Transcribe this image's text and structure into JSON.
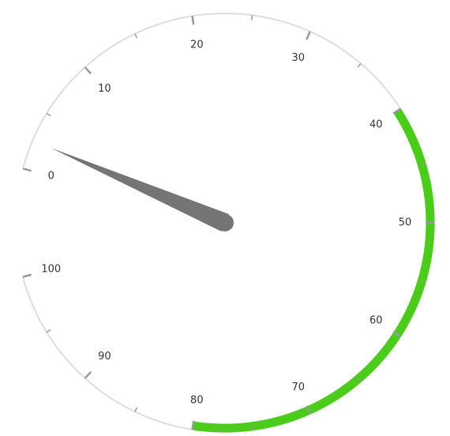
{
  "chart_data": {
    "type": "gauge",
    "min": 0,
    "max": 100,
    "start_angle_deg": 195,
    "sweep_deg": 330,
    "direction": "clockwise",
    "major_interval": 10,
    "minor_interval": 5,
    "tick_labels": [
      "0",
      "10",
      "20",
      "30",
      "40",
      "50",
      "60",
      "70",
      "80",
      "90",
      "100"
    ],
    "range": {
      "start": 40,
      "end": 80,
      "color": "#4ccc1a"
    },
    "pointer": {
      "value": 2.5,
      "type": "needle",
      "color": "#757575"
    },
    "colors": {
      "track": "#dddddd",
      "major_tick": "#999999",
      "minor_tick": "#999999",
      "label": "#333333"
    }
  }
}
